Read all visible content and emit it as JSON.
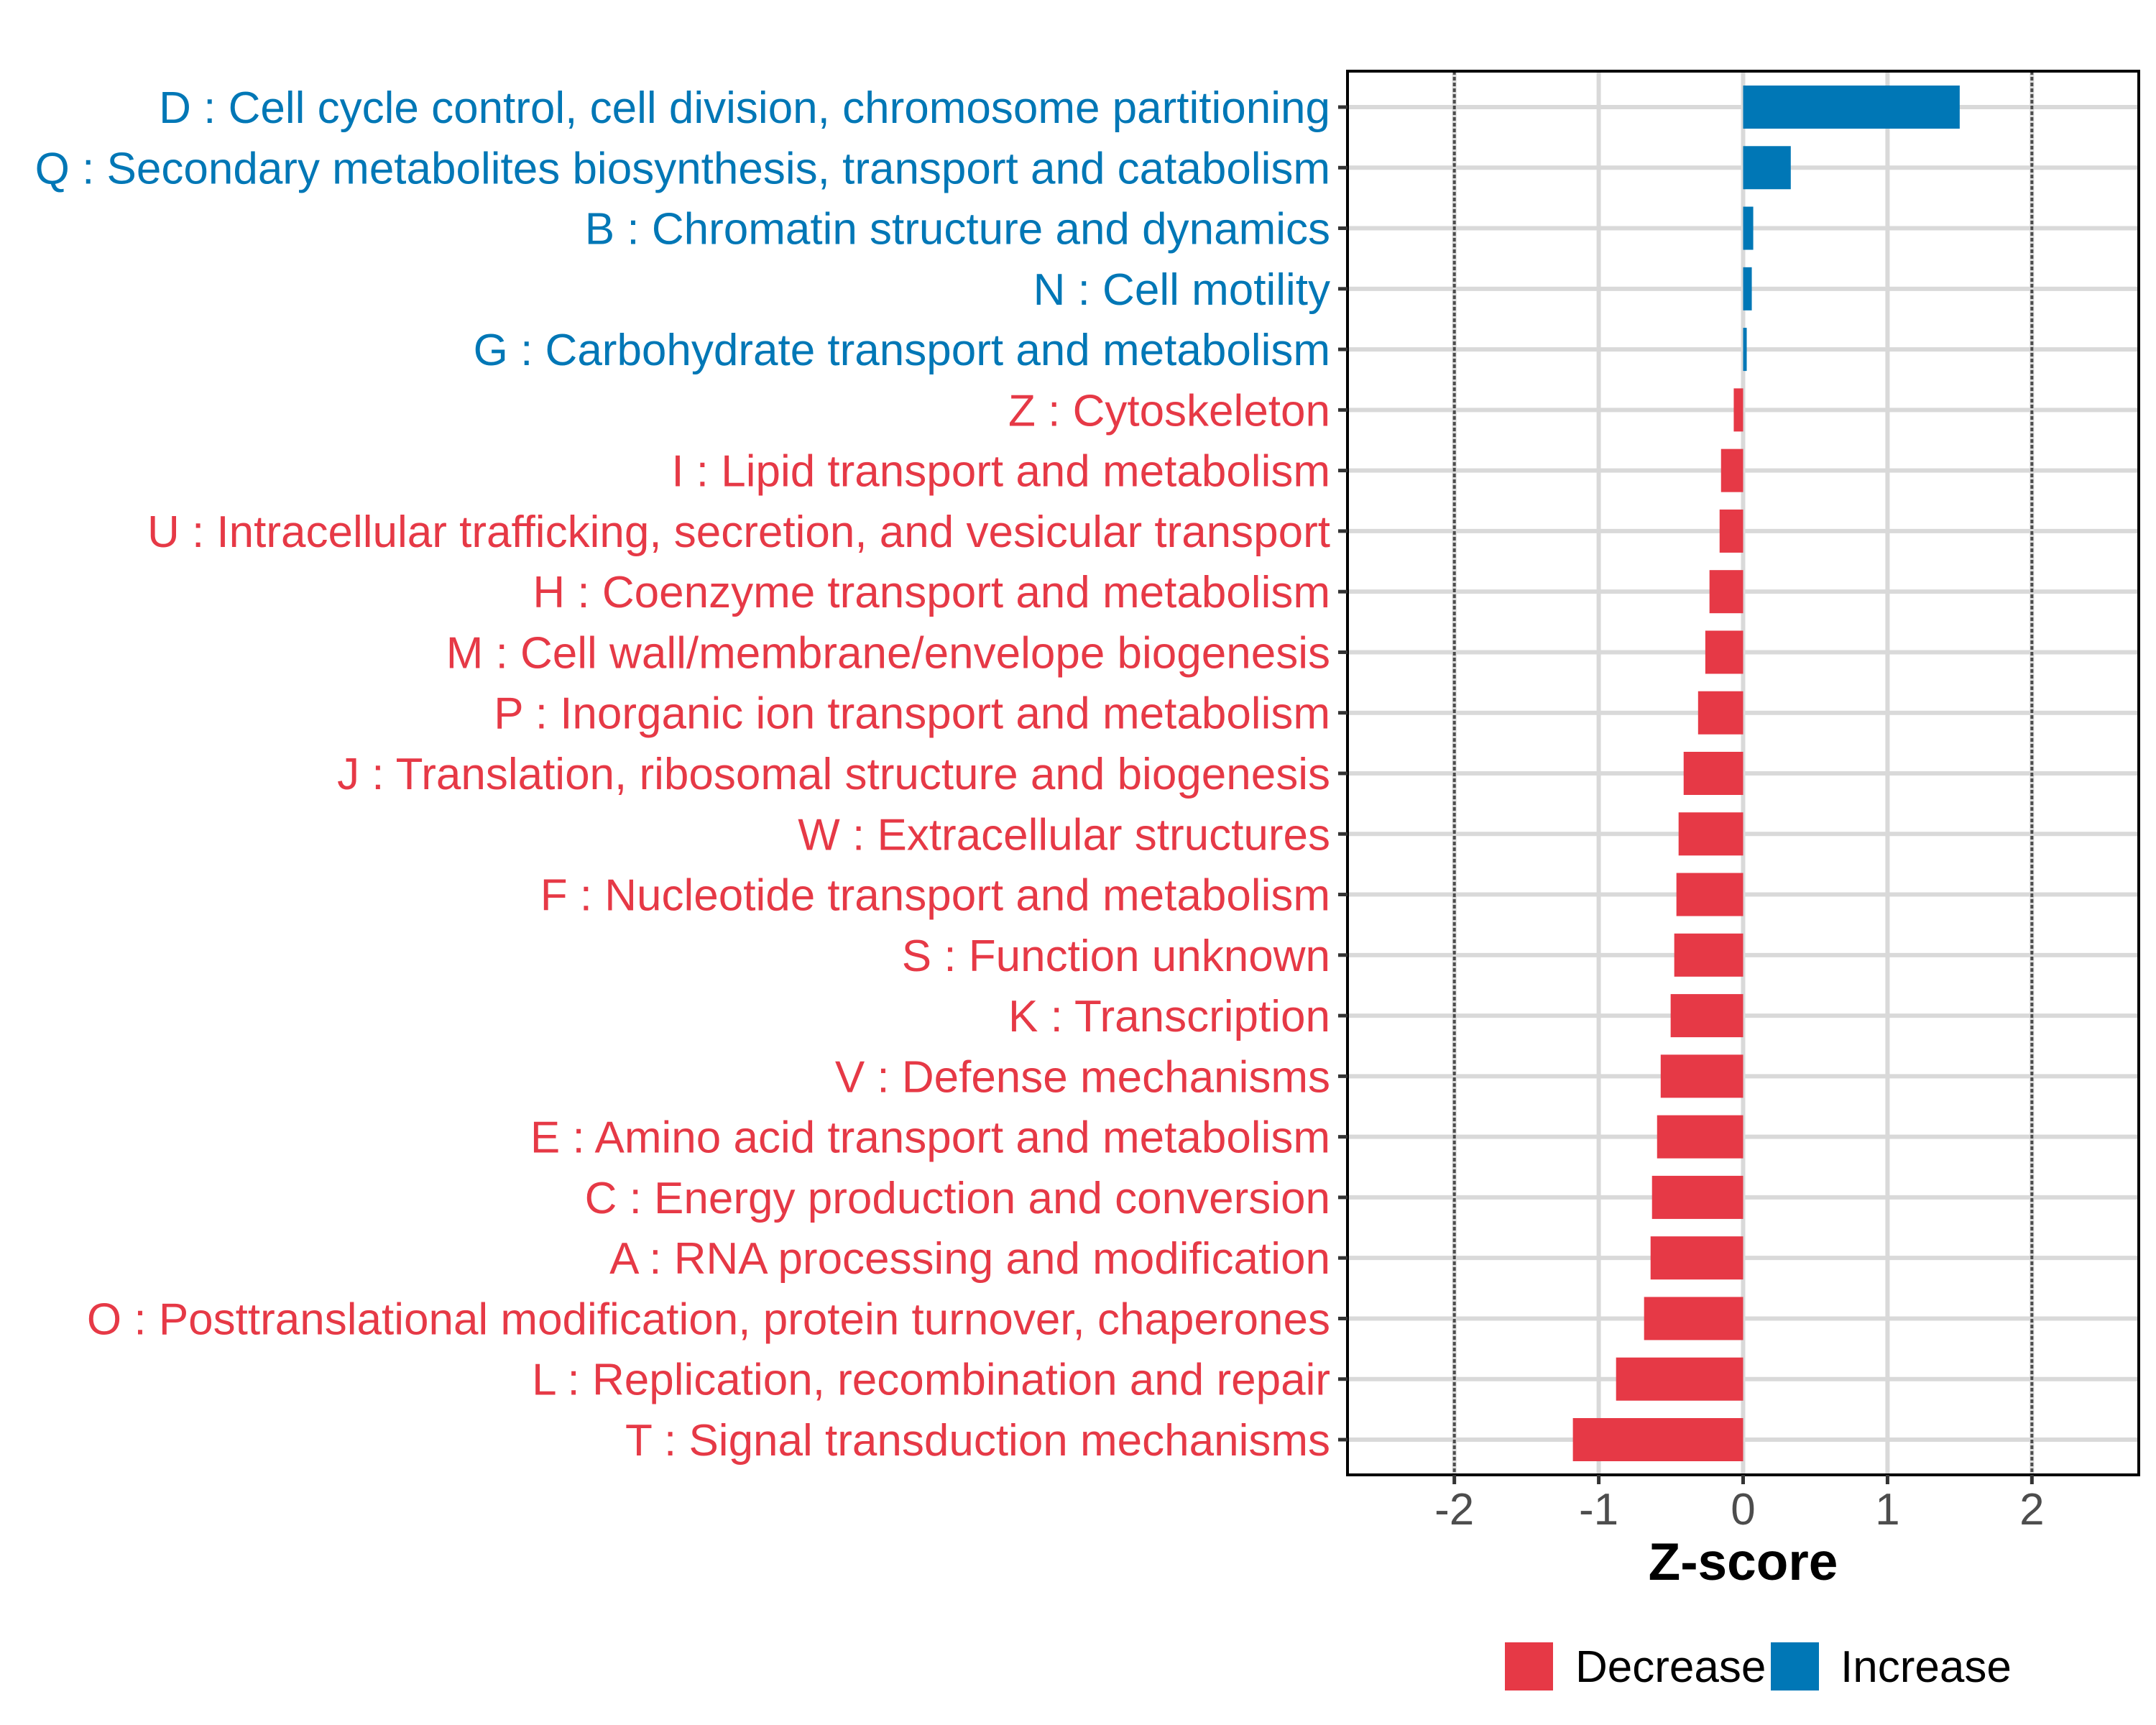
{
  "chart_data": {
    "type": "bar",
    "orientation": "horizontal",
    "title": "",
    "xlabel": "Z-score",
    "ylabel": "",
    "xlim": [
      -2.74,
      2.74
    ],
    "x_ticks": [
      -2,
      -1,
      0,
      1,
      2
    ],
    "x_tick_labels": [
      "-2",
      "-1",
      "0",
      "1",
      "2"
    ],
    "reference_lines": [
      -2,
      2
    ],
    "grid": true,
    "legend_position": "bottom",
    "legend": [
      {
        "name": "Decrease",
        "color": "#E63946"
      },
      {
        "name": "Increase",
        "color": "#0077B6"
      }
    ],
    "categories": [
      "D : Cell cycle control, cell division, chromosome partitioning",
      "Q : Secondary metabolites biosynthesis, transport and catabolism",
      "B : Chromatin structure and dynamics",
      "N : Cell motility",
      "G : Carbohydrate transport and metabolism",
      "Z : Cytoskeleton",
      "I : Lipid transport and metabolism",
      "U : Intracellular trafficking, secretion, and vesicular transport",
      "H : Coenzyme transport and metabolism",
      "M : Cell wall/membrane/envelope biogenesis",
      "P : Inorganic ion transport and metabolism",
      "J : Translation, ribosomal structure and biogenesis",
      "W : Extracellular structures",
      "F : Nucleotide transport and metabolism",
      "S : Function unknown",
      "K : Transcription",
      "V : Defense mechanisms",
      "E : Amino acid transport and metabolism",
      "C : Energy production and conversion",
      "A : RNA processing and modification",
      "O : Posttranslational modification, protein turnover, chaperones",
      "L : Replication, recombination and repair",
      "T : Signal transduction mechanisms"
    ],
    "values": [
      1.5,
      0.33,
      0.07,
      0.06,
      0.025,
      -0.065,
      -0.153,
      -0.163,
      -0.233,
      -0.262,
      -0.312,
      -0.412,
      -0.447,
      -0.462,
      -0.477,
      -0.502,
      -0.571,
      -0.596,
      -0.631,
      -0.641,
      -0.686,
      -0.88,
      -1.179
    ],
    "groups": [
      "Increase",
      "Increase",
      "Increase",
      "Increase",
      "Increase",
      "Decrease",
      "Decrease",
      "Decrease",
      "Decrease",
      "Decrease",
      "Decrease",
      "Decrease",
      "Decrease",
      "Decrease",
      "Decrease",
      "Decrease",
      "Decrease",
      "Decrease",
      "Decrease",
      "Decrease",
      "Decrease",
      "Decrease",
      "Decrease"
    ]
  },
  "colors": {
    "increase": "#0077B6",
    "decrease": "#E63946",
    "grid": "#D9D9D9",
    "reference_line": "#4D4D4D",
    "panel_border": "#000000",
    "tick_text": "#4D4D4D"
  }
}
